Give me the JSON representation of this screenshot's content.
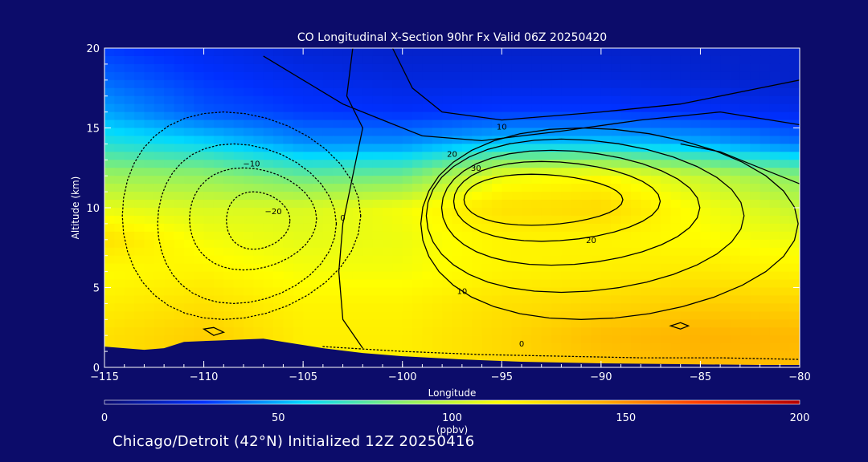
{
  "chart_data": {
    "type": "heatmap",
    "title": "CO Longitudinal X-Section 90hr  Fx Valid 06Z 20250420",
    "xlabel": "Longitude",
    "ylabel": "Altitude (km)",
    "xlim": [
      -115,
      -80
    ],
    "ylim": [
      0,
      20
    ],
    "x_ticks": [
      -115,
      -110,
      -105,
      -100,
      -95,
      -90,
      -85,
      -80
    ],
    "x_tick_labels": [
      "−115",
      "−110",
      "−105",
      "−100",
      "−95",
      "−90",
      "−85",
      "−80"
    ],
    "y_ticks": [
      0,
      5,
      10,
      15,
      20
    ],
    "y_tick_labels": [
      "0",
      "5",
      "10",
      "15",
      "20"
    ],
    "colorbar": {
      "min": 0,
      "max": 200,
      "ticks": [
        0,
        50,
        100,
        150,
        200
      ],
      "tick_labels": [
        "0",
        "50",
        "100",
        "150",
        "200"
      ],
      "units": "(ppbv)",
      "colors": [
        "#0a0a6e",
        "#0030ff",
        "#00d8ff",
        "#8af06a",
        "#ffff00",
        "#ffb000",
        "#ff3a00",
        "#b40000"
      ]
    },
    "co_field": {
      "description_levels": "CO mixing ratio (ppbv) on longitude x altitude grid",
      "lon": [
        -115,
        -110,
        -105,
        -100,
        -95,
        -90,
        -85,
        -80
      ],
      "alt": [
        0,
        2,
        4,
        6,
        8,
        10,
        12,
        14,
        16,
        18,
        20
      ],
      "values": [
        [
          125,
          132,
          120,
          120,
          128,
          135,
          140,
          138
        ],
        [
          125,
          132,
          120,
          120,
          128,
          138,
          142,
          140
        ],
        [
          120,
          125,
          118,
          118,
          125,
          128,
          132,
          130
        ],
        [
          115,
          118,
          112,
          112,
          118,
          120,
          122,
          118
        ],
        [
          125,
          112,
          108,
          110,
          118,
          118,
          115,
          110
        ],
        [
          108,
          105,
          105,
          112,
          125,
          128,
          112,
          100
        ],
        [
          90,
          88,
          78,
          80,
          110,
          115,
          100,
          85
        ],
        [
          65,
          58,
          45,
          45,
          55,
          55,
          50,
          40
        ],
        [
          48,
          35,
          30,
          28,
          30,
          30,
          28,
          25
        ],
        [
          38,
          30,
          25,
          22,
          22,
          22,
          20,
          18
        ],
        [
          30,
          25,
          20,
          18,
          18,
          18,
          18,
          18
        ]
      ]
    },
    "contour_labels": [
      "0",
      "10",
      "20",
      "30",
      "−10",
      "−20"
    ],
    "contours": {
      "positive_levels": [
        0,
        10,
        20,
        30
      ],
      "negative_levels": [
        -10,
        -20
      ],
      "negative_style": "dotted"
    }
  },
  "footer": {
    "text": "Chicago/Detroit (42°N) Initialized 12Z 20250416"
  }
}
